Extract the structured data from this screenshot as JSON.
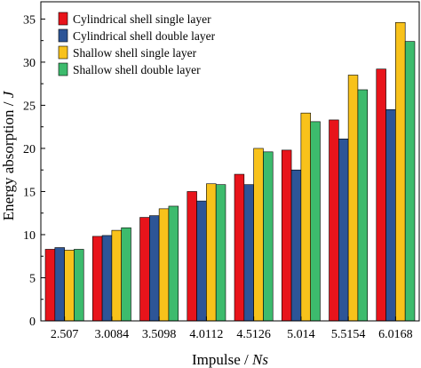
{
  "chart_data": {
    "type": "bar",
    "categories": [
      "2.507",
      "3.0084",
      "3.5098",
      "4.0112",
      "4.5126",
      "5.014",
      "5.5154",
      "6.0168"
    ],
    "series": [
      {
        "name": "Cylindrical shell single layer",
        "color": "#e8141b",
        "values": [
          8.3,
          9.8,
          12.0,
          15.0,
          17.0,
          19.8,
          23.3,
          29.2
        ]
      },
      {
        "name": "Cylindrical shell double layer",
        "color": "#2d5597",
        "values": [
          8.5,
          9.9,
          12.2,
          13.9,
          15.8,
          17.5,
          21.1,
          24.5
        ]
      },
      {
        "name": "Shallow shell single layer",
        "color": "#f8c21b",
        "values": [
          8.2,
          10.5,
          13.0,
          15.9,
          20.0,
          24.1,
          28.5,
          34.6
        ]
      },
      {
        "name": "Shallow shell double layer",
        "color": "#3dbb6d",
        "values": [
          8.3,
          10.8,
          13.3,
          15.8,
          19.6,
          23.1,
          26.8,
          32.4
        ]
      }
    ],
    "xlabel_main": "Impulse / ",
    "xlabel_unit": "Ns",
    "ylabel_main": "Energy absorption / ",
    "ylabel_unit": "J",
    "ylim": [
      0,
      37
    ],
    "yticks": [
      0,
      5,
      10,
      15,
      20,
      25,
      30,
      35
    ],
    "grid": false,
    "legend_position": "top-left"
  }
}
